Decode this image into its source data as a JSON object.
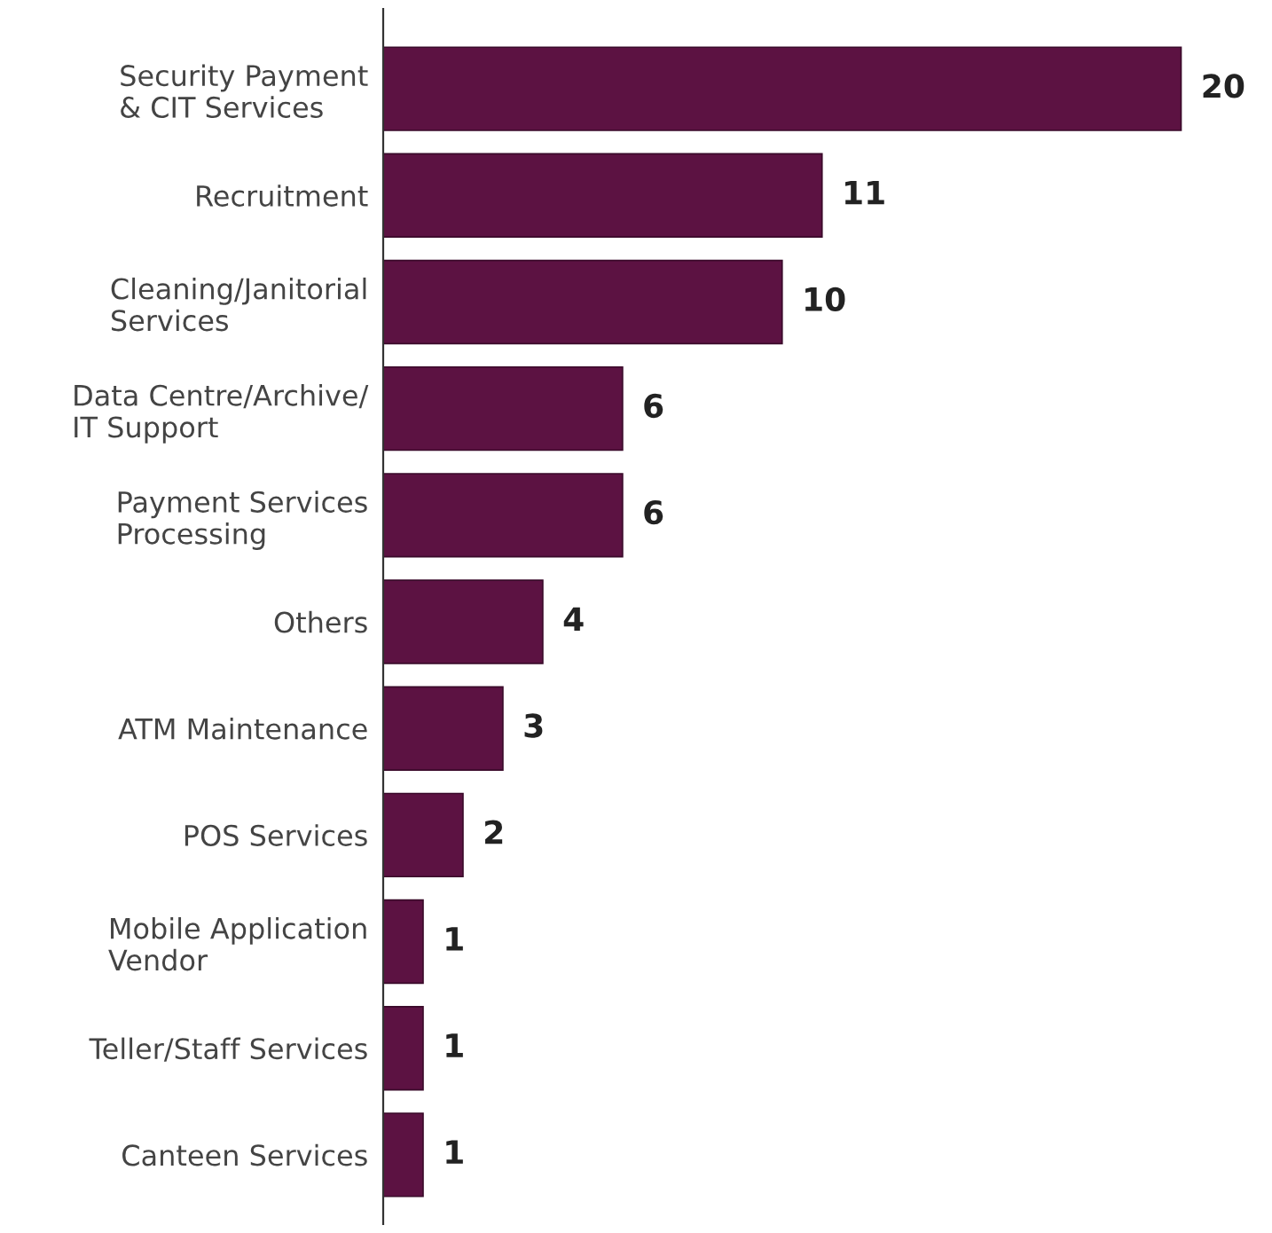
{
  "chart_data": {
    "type": "bar",
    "orientation": "horizontal",
    "categories": [
      "Security Payment\n& CIT Services",
      "Recruitment",
      "Cleaning/Janitorial\nServices",
      "Data Centre/Archive/\nIT Support",
      "Payment Services\nProcessing",
      "Others",
      "ATM Maintenance",
      "POS Services",
      "Mobile Application\nVendor",
      "Teller/Staff Services",
      "Canteen Services"
    ],
    "values": [
      20,
      11,
      10,
      6,
      6,
      4,
      3,
      2,
      1,
      1,
      1
    ],
    "color": "#5c1242",
    "data_labels": true,
    "grid": false,
    "legend": false
  }
}
